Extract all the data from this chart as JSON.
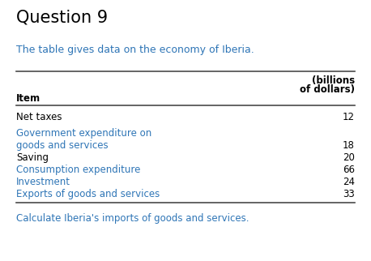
{
  "title": "Question 9",
  "subtitle": "The table gives data on the economy of Iberia.",
  "col_header_line1": "(billions",
  "col_header_line2": "of dollars)",
  "col_item_label": "Item",
  "rows": [
    {
      "item": "Net taxes",
      "value": "12",
      "color": "#000000"
    },
    {
      "item": "Government expenditure on",
      "item2": "goods and services",
      "value": "18",
      "color": "#2e75b6",
      "two_line": true
    },
    {
      "item": "Saving",
      "value": "20",
      "color": "#000000"
    },
    {
      "item": "Consumption expenditure",
      "value": "66",
      "color": "#2e75b6"
    },
    {
      "item": "Investment",
      "value": "24",
      "color": "#2e75b6"
    },
    {
      "item": "Exports of goods and services",
      "value": "33",
      "color": "#2e75b6"
    }
  ],
  "footer": "Calculate Iberia's imports of goods and services.",
  "title_color": "#000000",
  "subtitle_color": "#2e75b6",
  "footer_color": "#2e75b6",
  "header_color": "#000000",
  "bg_color": "#ffffff",
  "line_color": "#4a4a4a",
  "title_fontsize": 15,
  "subtitle_fontsize": 9,
  "header_fontsize": 8.5,
  "row_fontsize": 8.5,
  "footer_fontsize": 8.5
}
